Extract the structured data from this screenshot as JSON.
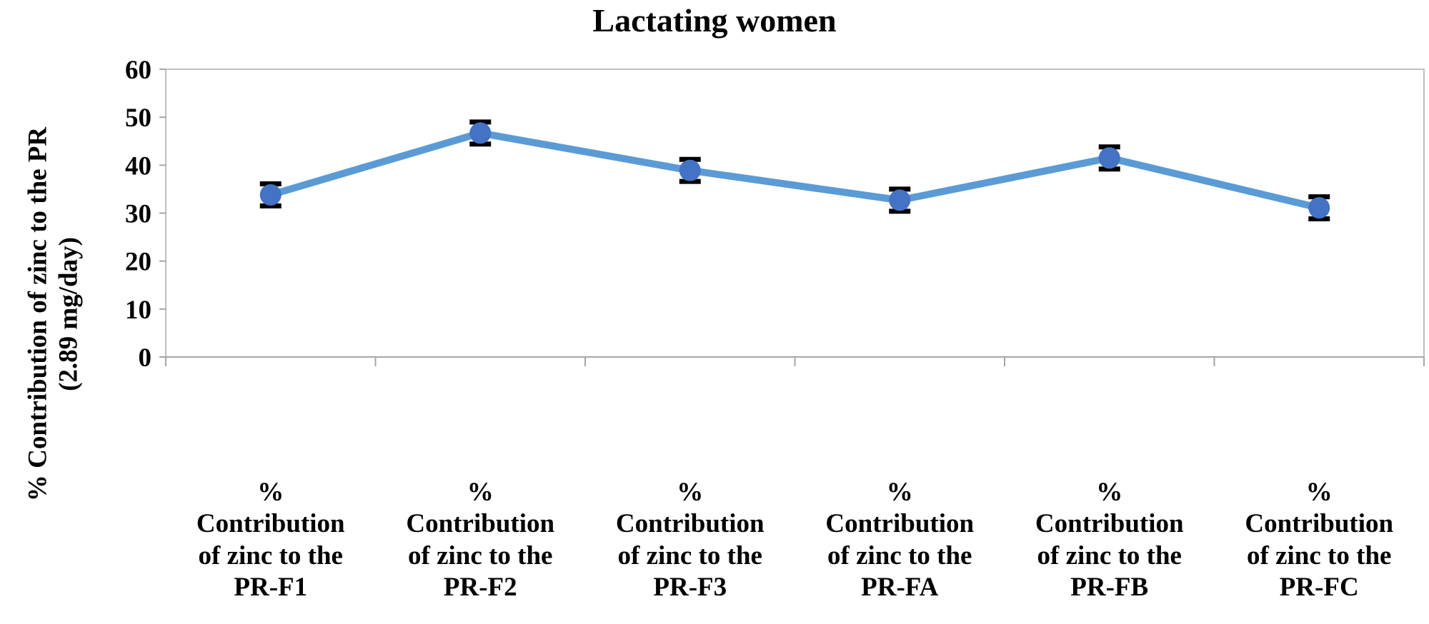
{
  "chart_data": {
    "type": "line",
    "title": "Lactating women",
    "ylabel_lines": [
      "% Contribution of zinc to the PR",
      "(2.89 mg/day)"
    ],
    "xlabel": "",
    "ylim": [
      0,
      60
    ],
    "yticks": [
      0,
      10,
      20,
      30,
      40,
      50,
      60
    ],
    "ytick_labels": [
      "0",
      "10",
      "20",
      "30",
      "40",
      "50",
      "60"
    ],
    "categories": [
      {
        "lines": [
          "%",
          "Contribution",
          "of zinc to the",
          "PR-F1"
        ]
      },
      {
        "lines": [
          "%",
          "Contribution",
          "of zinc to the",
          "PR-F2"
        ]
      },
      {
        "lines": [
          "%",
          "Contribution",
          "of zinc to the",
          "PR-F3"
        ]
      },
      {
        "lines": [
          "%",
          "Contribution",
          "of zinc to the",
          "PR-FA"
        ]
      },
      {
        "lines": [
          "%",
          "Contribution",
          "of zinc to the",
          "PR-FB"
        ]
      },
      {
        "lines": [
          "%",
          "Contribution",
          "of zinc to the",
          "PR-FC"
        ]
      }
    ],
    "series": [
      {
        "name": "% Contribution of zinc to the PR",
        "values": [
          33.8,
          46.7,
          38.9,
          32.7,
          41.5,
          31.1
        ],
        "error": [
          2.3,
          2.3,
          2.3,
          2.3,
          2.3,
          2.3
        ],
        "line_color": "#5B9BD5",
        "marker_color": "#4472C4"
      }
    ],
    "grid": false,
    "legend": "none"
  }
}
